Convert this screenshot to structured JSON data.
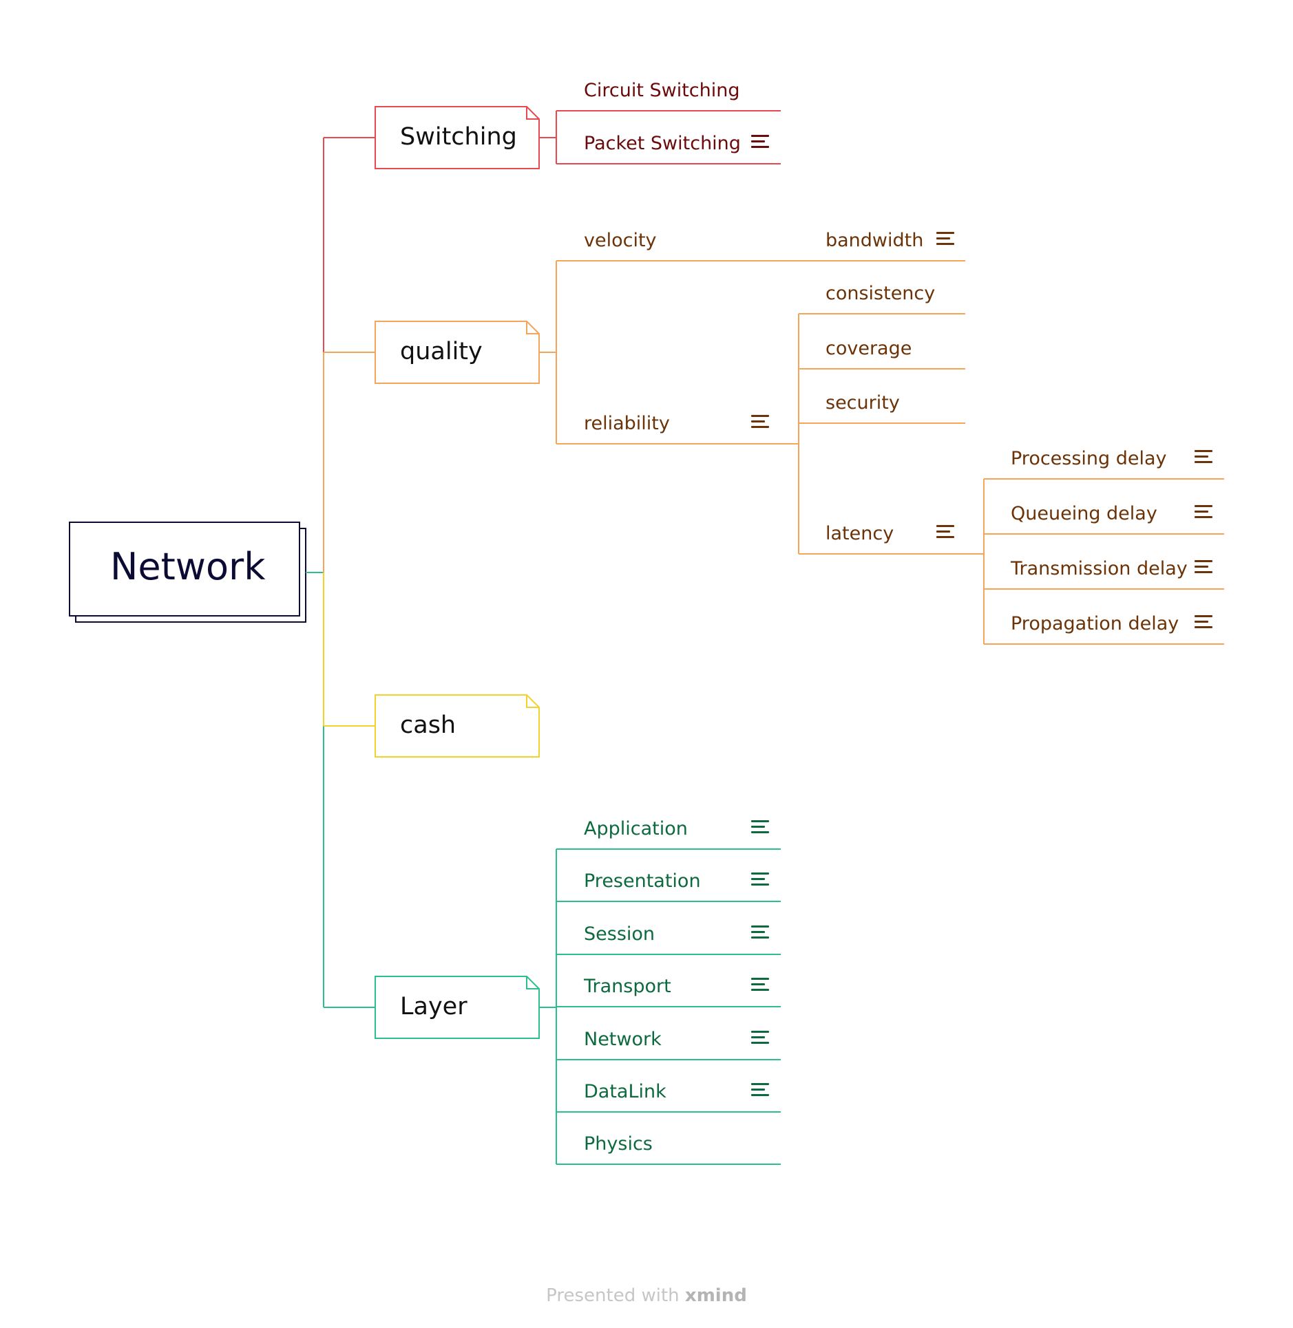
{
  "root": {
    "label": "Network"
  },
  "branches": {
    "switching": {
      "label": "Switching",
      "color": "#e8484f",
      "children": [
        {
          "label": "Circuit Switching",
          "has_note": false
        },
        {
          "label": "Packet Switching",
          "has_note": true
        }
      ]
    },
    "quality": {
      "label": "quality",
      "color": "#f4a55a",
      "children": [
        {
          "label": "velocity",
          "has_note": false,
          "children": [
            {
              "label": "bandwidth",
              "has_note": true
            }
          ]
        },
        {
          "label": "reliability",
          "has_note": true,
          "children": [
            {
              "label": "consistency",
              "has_note": false
            },
            {
              "label": "coverage",
              "has_note": false
            },
            {
              "label": "security",
              "has_note": false
            },
            {
              "label": "latency",
              "has_note": true,
              "children": [
                {
                  "label": "Processing delay",
                  "has_note": true
                },
                {
                  "label": "Queueing delay",
                  "has_note": true
                },
                {
                  "label": "Transmission delay",
                  "has_note": true
                },
                {
                  "label": "Propagation delay",
                  "has_note": true
                }
              ]
            }
          ]
        }
      ]
    },
    "cash": {
      "label": "cash",
      "color": "#f2d22c",
      "children": []
    },
    "layer": {
      "label": "Layer",
      "color": "#2cbf8c",
      "children": [
        {
          "label": "Application",
          "has_note": true
        },
        {
          "label": "Presentation",
          "has_note": true
        },
        {
          "label": "Session",
          "has_note": true
        },
        {
          "label": "Transport",
          "has_note": true
        },
        {
          "label": "Network",
          "has_note": true
        },
        {
          "label": "DataLink",
          "has_note": true
        },
        {
          "label": "Physics",
          "has_note": false
        }
      ]
    }
  },
  "footer": {
    "prefix": "Presented with",
    "brand": "xmind"
  }
}
